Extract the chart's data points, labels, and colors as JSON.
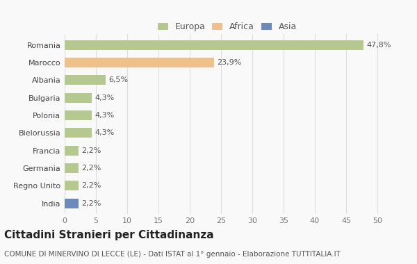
{
  "countries": [
    "Romania",
    "Marocco",
    "Albania",
    "Bulgaria",
    "Polonia",
    "Bielorussia",
    "Francia",
    "Germania",
    "Regno Unito",
    "India"
  ],
  "values": [
    47.8,
    23.9,
    6.5,
    4.3,
    4.3,
    4.3,
    2.2,
    2.2,
    2.2,
    2.2
  ],
  "labels": [
    "47,8%",
    "23,9%",
    "6,5%",
    "4,3%",
    "4,3%",
    "4,3%",
    "2,2%",
    "2,2%",
    "2,2%",
    "2,2%"
  ],
  "colors": [
    "#b5c98e",
    "#f0c08a",
    "#b5c98e",
    "#b5c98e",
    "#b5c98e",
    "#b5c98e",
    "#b5c98e",
    "#b5c98e",
    "#b5c98e",
    "#6a8abf"
  ],
  "continent_colors": {
    "Europa": "#b5c98e",
    "Africa": "#f0c08a",
    "Asia": "#6a8abf"
  },
  "title": "Cittadini Stranieri per Cittadinanza",
  "subtitle": "COMUNE DI MINERVINO DI LECCE (LE) - Dati ISTAT al 1° gennaio - Elaborazione TUTTITALIA.IT",
  "xlim": [
    0,
    52
  ],
  "xticks": [
    0,
    5,
    10,
    15,
    20,
    25,
    30,
    35,
    40,
    45,
    50
  ],
  "background_color": "#f9f9f9",
  "grid_color": "#dddddd",
  "bar_height": 0.55,
  "title_fontsize": 11,
  "subtitle_fontsize": 7.5,
  "label_fontsize": 8,
  "tick_fontsize": 8,
  "legend_fontsize": 9
}
